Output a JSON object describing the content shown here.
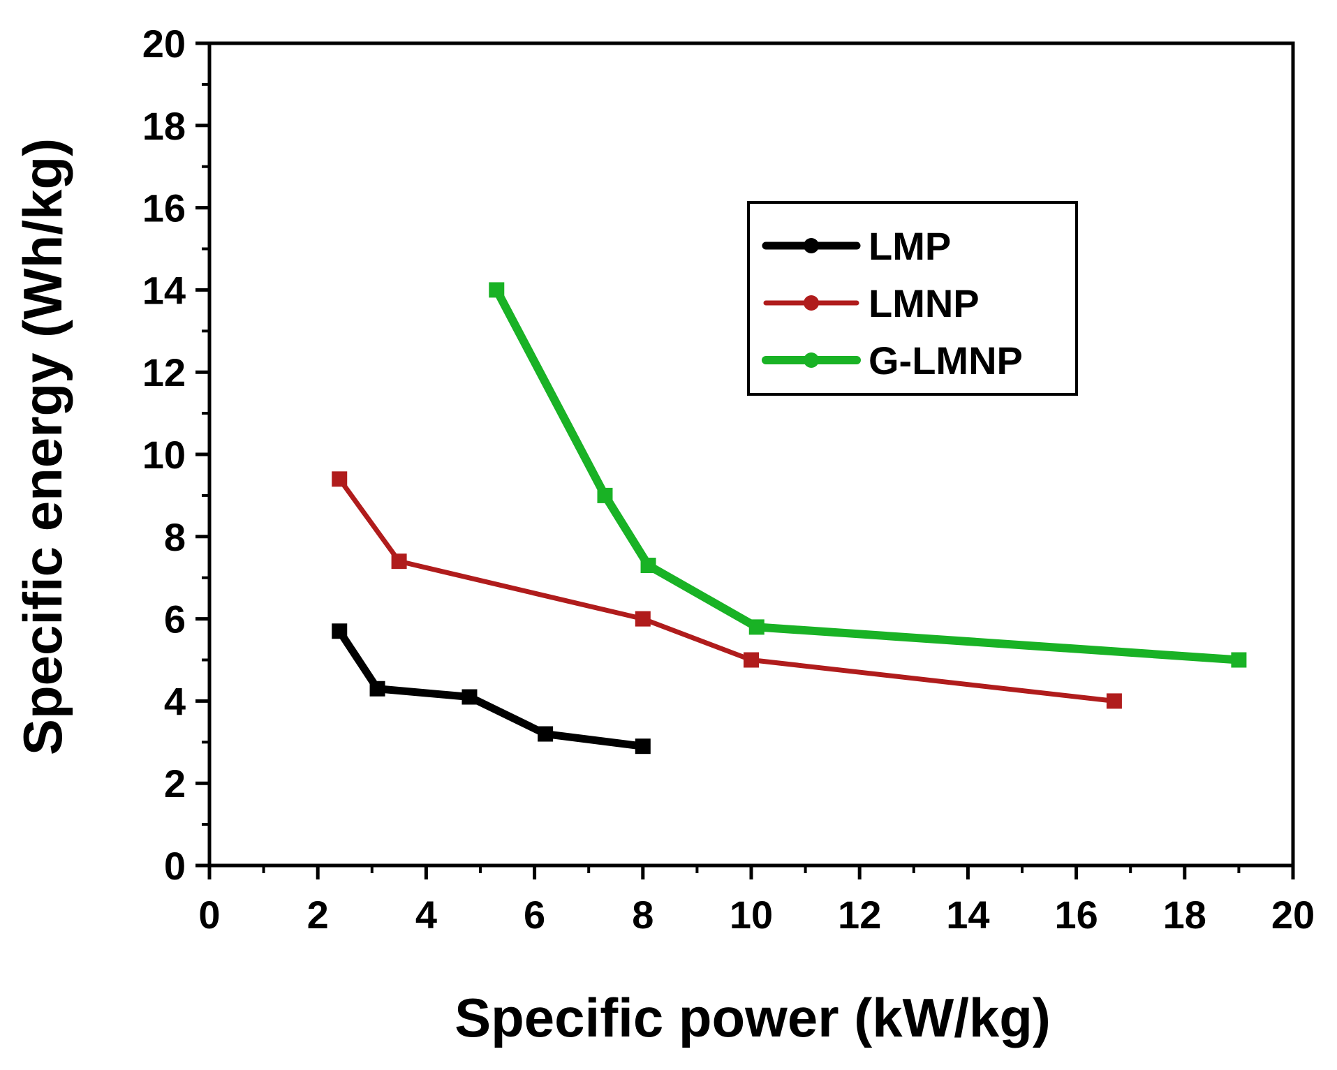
{
  "chart_data": {
    "type": "line",
    "title": "",
    "xlabel": "Specific power (kW/kg)",
    "ylabel": "Specific energy (Wh/kg)",
    "xlim": [
      0,
      20
    ],
    "ylim": [
      0,
      20
    ],
    "xticks": [
      0,
      2,
      4,
      6,
      8,
      10,
      12,
      14,
      16,
      18,
      20
    ],
    "yticks": [
      0,
      2,
      4,
      6,
      8,
      10,
      12,
      14,
      16,
      18,
      20
    ],
    "grid": false,
    "legend_position": "upper-right",
    "series": [
      {
        "name": "LMP",
        "color": "#000000",
        "marker": "square",
        "x": [
          2.4,
          3.1,
          4.8,
          6.2,
          8.0
        ],
        "y": [
          5.7,
          4.3,
          4.1,
          3.2,
          2.9
        ]
      },
      {
        "name": "LMNP",
        "color": "#b01c1c",
        "marker": "square",
        "x": [
          2.4,
          3.5,
          8.0,
          10.0,
          16.7
        ],
        "y": [
          9.4,
          7.4,
          6.0,
          5.0,
          4.0
        ]
      },
      {
        "name": "G-LMNP",
        "color": "#19b225",
        "marker": "square",
        "x": [
          5.3,
          7.3,
          8.1,
          10.1,
          19.0
        ],
        "y": [
          14.0,
          9.0,
          7.3,
          5.8,
          5.0
        ]
      }
    ]
  }
}
